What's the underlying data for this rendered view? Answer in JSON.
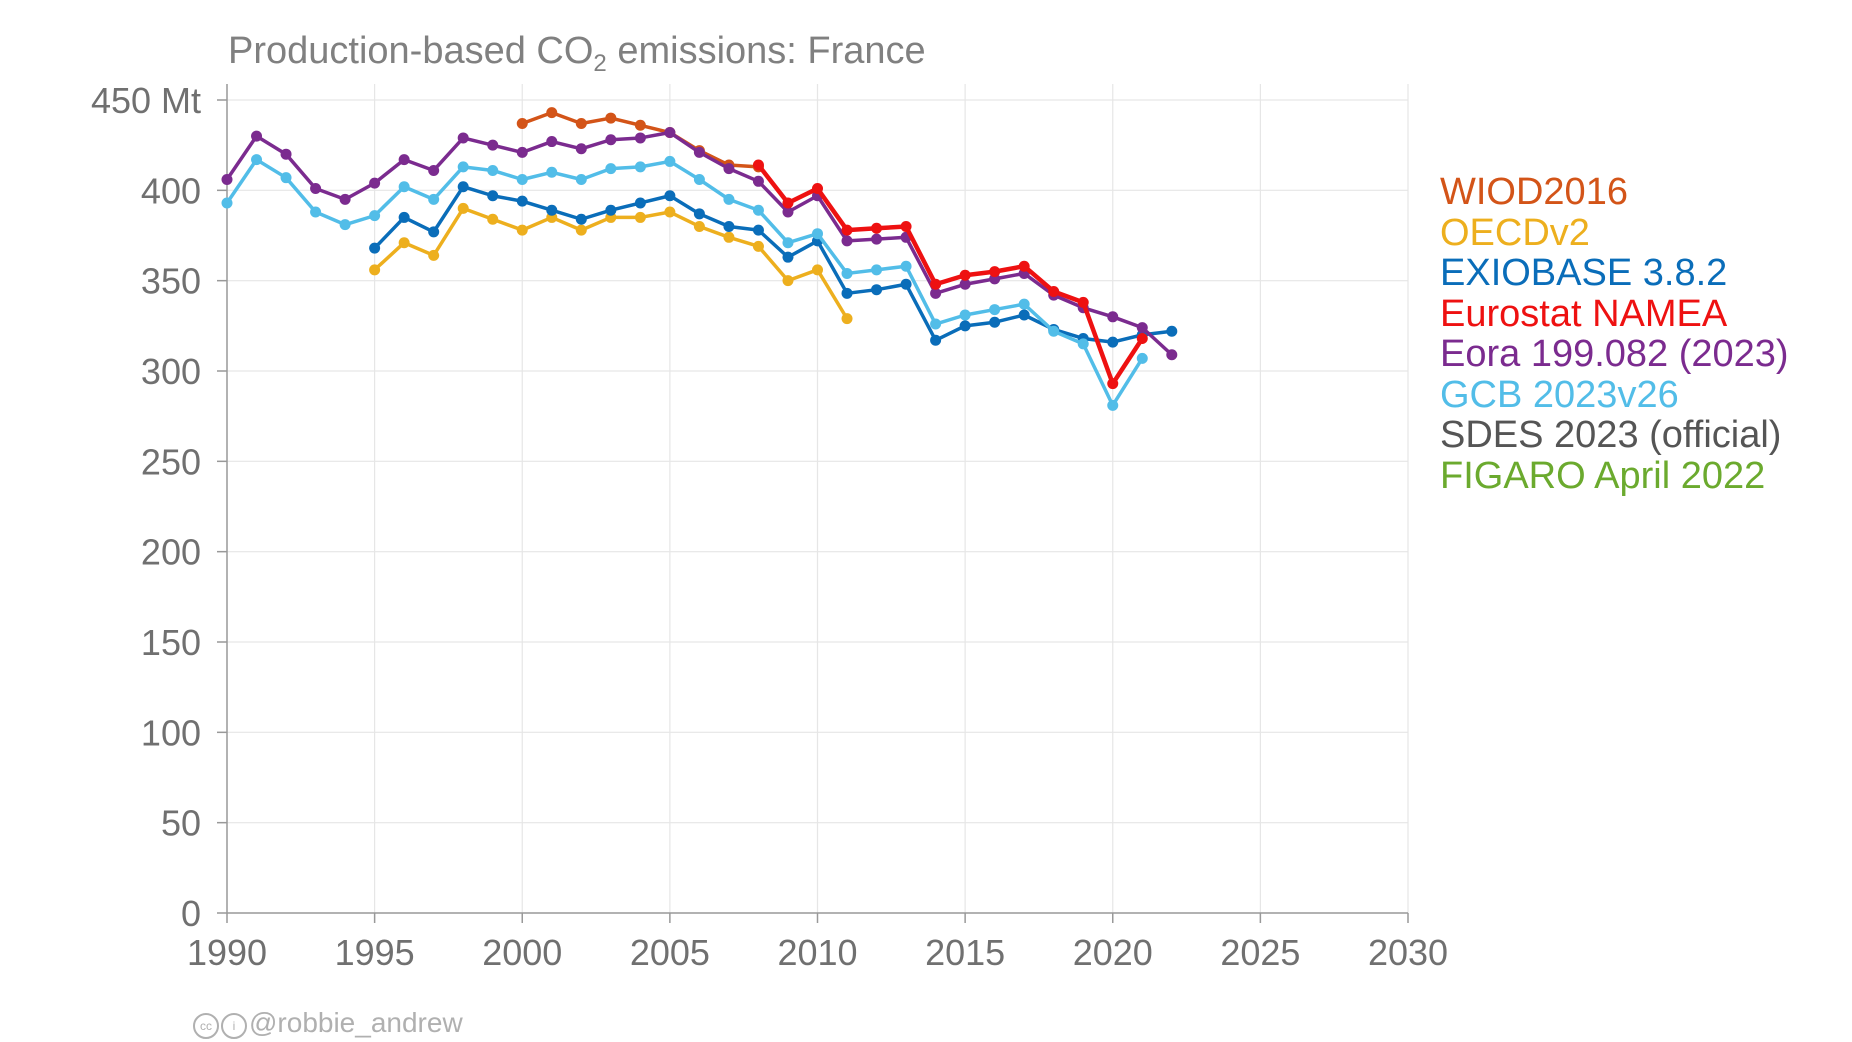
{
  "title": {
    "prefix": "Production-based CO",
    "sub": "2",
    "suffix": " emissions: France"
  },
  "credit": {
    "cc": "cc",
    "by": "i",
    "text": "@robbie_andrew"
  },
  "chart_data": {
    "type": "line",
    "title": "Production-based CO2 emissions: France",
    "xlim": [
      1990,
      2030
    ],
    "ylim": [
      0,
      450
    ],
    "x_ticks": [
      1990,
      1995,
      2000,
      2005,
      2010,
      2015,
      2020,
      2025,
      2030
    ],
    "y_ticks": [
      0,
      50,
      100,
      150,
      200,
      250,
      300,
      350,
      400,
      450
    ],
    "y_tick_labels": [
      "0",
      "50",
      "100",
      "150",
      "200",
      "250",
      "300",
      "350",
      "400",
      "450 Mt"
    ],
    "grid": true,
    "legend_position": "right",
    "series": [
      {
        "name": "WIOD2016",
        "color": "#D35418",
        "x": [
          2000,
          2001,
          2002,
          2003,
          2004,
          2005,
          2006,
          2007,
          2008
        ],
        "y": [
          437,
          443,
          437,
          440,
          436,
          432,
          422,
          414,
          413
        ]
      },
      {
        "name": "OECDv2",
        "color": "#EDAF1E",
        "x": [
          1995,
          1996,
          1997,
          1998,
          1999,
          2000,
          2001,
          2002,
          2003,
          2004,
          2005,
          2006,
          2007,
          2008,
          2009,
          2010,
          2011
        ],
        "y": [
          356,
          371,
          364,
          390,
          384,
          378,
          385,
          378,
          385,
          385,
          388,
          380,
          374,
          369,
          350,
          356,
          329
        ]
      },
      {
        "name": "EXIOBASE 3.8.2",
        "color": "#0A6DB9",
        "x": [
          1995,
          1996,
          1997,
          1998,
          1999,
          2000,
          2001,
          2002,
          2003,
          2004,
          2005,
          2006,
          2007,
          2008,
          2009,
          2010,
          2011,
          2012,
          2013,
          2014,
          2015,
          2016,
          2017,
          2018,
          2019,
          2020,
          2021,
          2022
        ],
        "y": [
          368,
          385,
          377,
          402,
          397,
          394,
          389,
          384,
          389,
          393,
          397,
          387,
          380,
          378,
          363,
          372,
          343,
          345,
          348,
          317,
          325,
          327,
          331,
          323,
          318,
          316,
          320,
          322
        ]
      },
      {
        "name": "Eurostat NAMEA",
        "color": "#EE1111",
        "x": [
          2008,
          2009,
          2010,
          2011,
          2012,
          2013,
          2014,
          2015,
          2016,
          2017,
          2018,
          2019,
          2020,
          2021
        ],
        "y": [
          414,
          393,
          401,
          378,
          379,
          380,
          348,
          353,
          355,
          358,
          344,
          338,
          293,
          318
        ]
      },
      {
        "name": "Eora 199.082 (2023)",
        "color": "#7B2B8F",
        "x": [
          1990,
          1991,
          1992,
          1993,
          1994,
          1995,
          1996,
          1997,
          1998,
          1999,
          2000,
          2001,
          2002,
          2003,
          2004,
          2005,
          2006,
          2007,
          2008,
          2009,
          2010,
          2011,
          2012,
          2013,
          2014,
          2015,
          2016,
          2017,
          2018,
          2019,
          2020,
          2021,
          2022
        ],
        "y": [
          406,
          430,
          420,
          401,
          395,
          404,
          417,
          411,
          429,
          425,
          421,
          427,
          423,
          428,
          429,
          432,
          421,
          412,
          405,
          388,
          397,
          372,
          373,
          374,
          343,
          348,
          351,
          354,
          342,
          335,
          330,
          324,
          309
        ]
      },
      {
        "name": "GCB 2023v26",
        "color": "#52BDE8",
        "x": [
          1990,
          1991,
          1992,
          1993,
          1994,
          1995,
          1996,
          1997,
          1998,
          1999,
          2000,
          2001,
          2002,
          2003,
          2004,
          2005,
          2006,
          2007,
          2008,
          2009,
          2010,
          2011,
          2012,
          2013,
          2014,
          2015,
          2016,
          2017,
          2018,
          2019,
          2020,
          2021
        ],
        "y": [
          393,
          417,
          407,
          388,
          381,
          386,
          402,
          395,
          413,
          411,
          406,
          410,
          406,
          412,
          413,
          416,
          406,
          395,
          389,
          371,
          376,
          354,
          356,
          358,
          326,
          331,
          334,
          337,
          322,
          315,
          281,
          307
        ]
      },
      {
        "name": "SDES 2023 (official)",
        "color": "#555555",
        "x": [],
        "y": []
      },
      {
        "name": "FIGARO April 2022",
        "color": "#6BAA2E",
        "x": [],
        "y": []
      }
    ]
  }
}
